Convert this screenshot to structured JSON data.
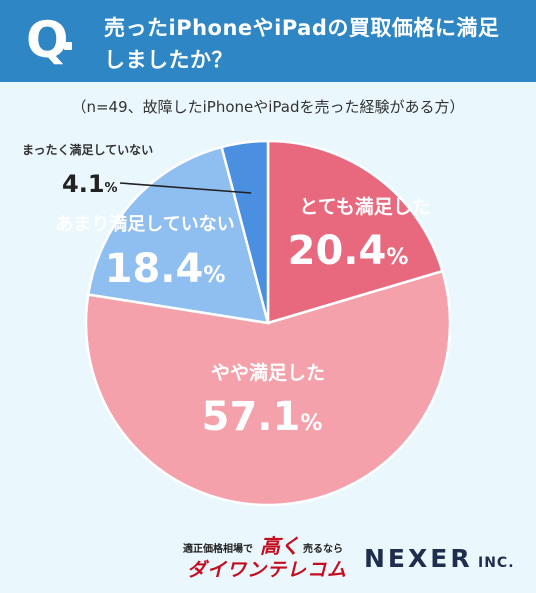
{
  "header": {
    "q_mark": "Q",
    "question_line1": "売ったiPhoneやiPadの買取価格に満足",
    "question_line2": "しましたか？"
  },
  "subtitle": "（n=49、故障したiPhoneやiPadを売った経験がある方）",
  "colors": {
    "header_bg": "#2f86c4",
    "background": "#eaf7fd",
    "very_satisfied": "#e8687e",
    "somewhat_satisfied": "#f5a1ab",
    "not_very_satisfied": "#8fbef0",
    "not_at_all_satisfied": "#4a8fe0"
  },
  "chart_data": {
    "type": "pie",
    "title": "売ったiPhoneやiPadの買取価格に満足しましたか？",
    "slices": [
      {
        "label": "とても満足した",
        "value": 20.4,
        "value_text": "20.4",
        "unit": "%",
        "color": "#e8687e"
      },
      {
        "label": "やや満足した",
        "value": 57.1,
        "value_text": "57.1",
        "unit": "%",
        "color": "#f5a1ab"
      },
      {
        "label": "あまり満足していない",
        "value": 18.4,
        "value_text": "18.4",
        "unit": "%",
        "color": "#8fbef0"
      },
      {
        "label": "まったく満足していない",
        "value": 4.1,
        "value_text": "4.1",
        "unit": "%",
        "color": "#4a8fe0"
      }
    ]
  },
  "footer": {
    "sponsor_small_left": "適正価格相場で",
    "sponsor_highlight": "高く",
    "sponsor_small_right": "売るなら",
    "sponsor_name": "ダイワンテレコム",
    "company": "NEXER",
    "company_suffix": "INC."
  }
}
